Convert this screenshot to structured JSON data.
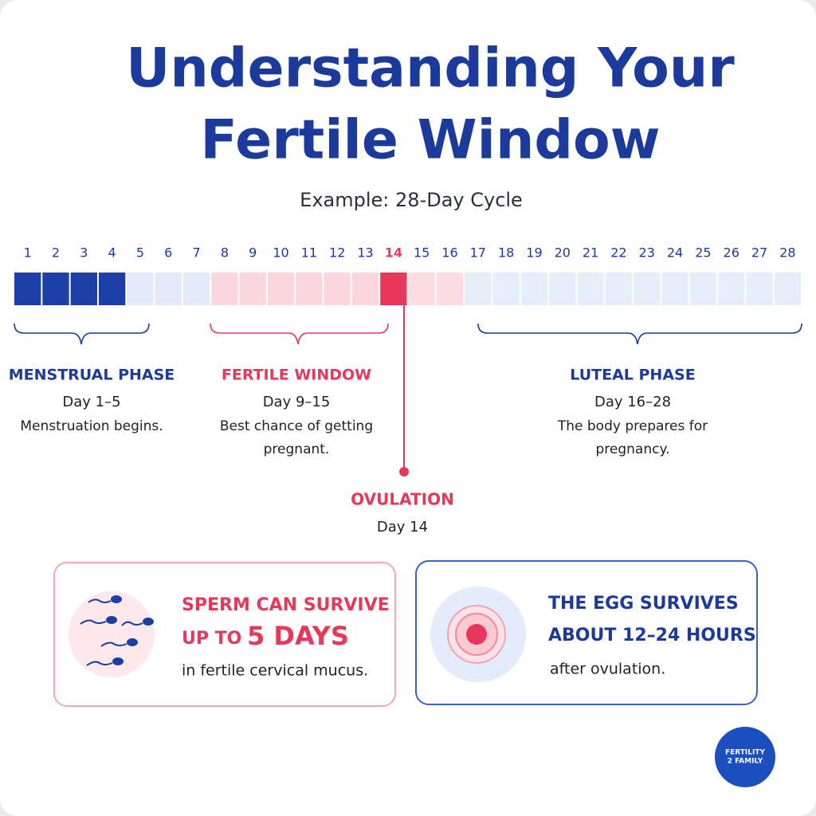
{
  "title": [
    "Understanding Your",
    "Fertile Window"
  ],
  "subtitle": "Example: 28-Day Cycle",
  "timeline": {
    "days": [
      1,
      2,
      3,
      4,
      5,
      6,
      7,
      8,
      9,
      10,
      11,
      12,
      13,
      14,
      15,
      16,
      17,
      18,
      19,
      20,
      21,
      22,
      23,
      24,
      25,
      26,
      27,
      28
    ],
    "day_colors": [
      "#1b3fa6",
      "#1b3fa6",
      "#1b3fa6",
      "#1b3fa6",
      "#e2eaf8",
      "#e2eaf8",
      "#e2eaf8",
      "#fbd6dd",
      "#fbd6dd",
      "#fbd6dd",
      "#fbd6dd",
      "#fbd6dd",
      "#fbd6dd",
      "#e8385a",
      "#fcdde2",
      "#fcdde2",
      "#e6eefa",
      "#e6eefa",
      "#e6eefa",
      "#e6eefa",
      "#e6eefa",
      "#e6eefa",
      "#e6eefa",
      "#e6eefa",
      "#e6eefa",
      "#e6eefa",
      "#e6eefa",
      "#e6eefa"
    ],
    "label_colors": [
      "#1b3a9c",
      "#1b3a9c",
      "#1b3a9c",
      "#1b3a9c",
      "#1b3a9c",
      "#1b3a9c",
      "#1b3a9c",
      "#1b3a9c",
      "#1b3a9c",
      "#1b3a9c",
      "#1b3a9c",
      "#1b3a9c",
      "#1b3a9c",
      "#e8385a",
      "#1b3a9c",
      "#1b3a9c",
      "#1b3a9c",
      "#1b3a9c",
      "#1b3a9c",
      "#1b3a9c",
      "#1b3a9c",
      "#1b3a9c",
      "#1b3a9c",
      "#1b3a9c",
      "#1b3a9c",
      "#1b3a9c",
      "#1b3a9c",
      "#1b3a9c"
    ]
  },
  "phases": [
    {
      "name": "MENSTRUAL PHASE",
      "days": "Day 1–5",
      "description": [
        "Menstruation begins."
      ],
      "color": "#1b3a9c"
    },
    {
      "name": "FERTILE WINDOW",
      "days": "Day 9–15",
      "description": [
        "Best chance of getting",
        "pregnant."
      ],
      "color": "#e8385a"
    },
    {
      "name": "LUTEAL PHASE",
      "days": "Day 16–28",
      "description": [
        "The body prepares for",
        "pregnancy."
      ],
      "color": "#1b3a9c"
    }
  ],
  "ovulation": {
    "name": "OVULATION",
    "day": "Day 14"
  },
  "cards": [
    {
      "heading": "SPERM CAN SURVIVE",
      "prefix": "UP TO",
      "highlight": "5 DAYS",
      "note": "in fertile cervical mucus."
    },
    {
      "heading": "THE EGG SURVIVES",
      "highlight": "ABOUT 12–24 HOURS",
      "note": "after ovulation."
    }
  ],
  "logo": [
    "FERTILITY",
    "2 FAMILY"
  ]
}
